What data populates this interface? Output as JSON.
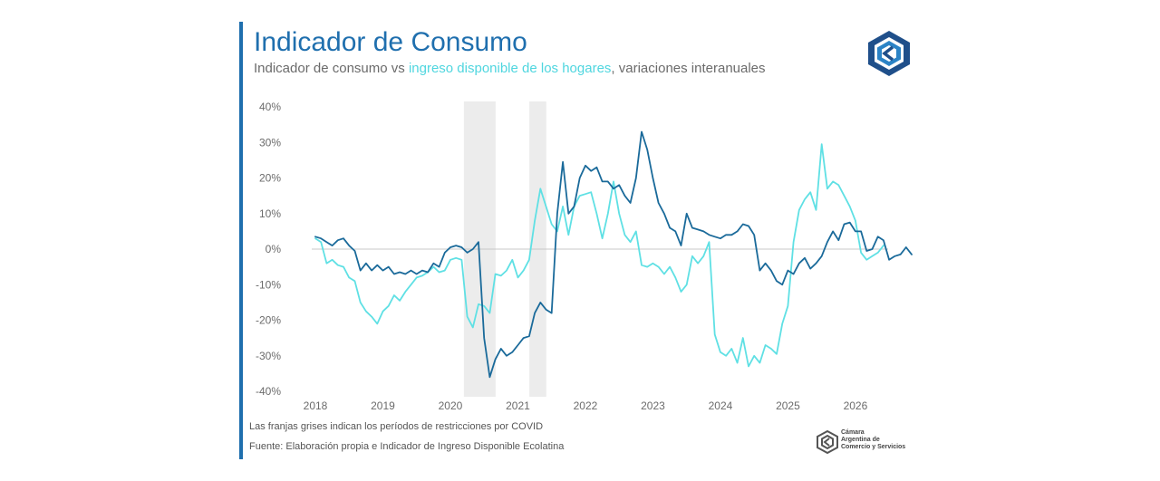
{
  "header": {
    "title": "Indicador de Consumo",
    "subtitle_prefix": "Indicador de consumo vs ",
    "subtitle_highlight": "ingreso disponible de los hogares",
    "subtitle_suffix": ", variaciones interanuales"
  },
  "footer": {
    "note": "Las franjas grises indican los períodos de restricciones por COVID",
    "source": "Fuente: Elaboración propia e Indicador de Ingreso Disponible Ecolatina"
  },
  "logo": {
    "org_line1": "Cámara",
    "org_line2": "Argentina de",
    "org_line3": "Comercio y Servicios",
    "icon": "cac-logo-icon"
  },
  "colors": {
    "accent": "#1f6fae",
    "consumo": "#1a6a9a",
    "ingreso": "#5fe0e4",
    "band": "#ececec"
  },
  "chart_data": {
    "type": "line",
    "title": "Indicador de Consumo",
    "xlabel": "",
    "ylabel": "",
    "ylim": [
      -40,
      40
    ],
    "xlim": [
      2018.0,
      2026.35
    ],
    "yticks": [
      -40,
      -30,
      -20,
      -10,
      0,
      10,
      20,
      30,
      40
    ],
    "ytick_labels": [
      "-40%",
      "-30%",
      "-20%",
      "-10%",
      "0%",
      "10%",
      "20%",
      "30%",
      "40%"
    ],
    "xticks": [
      2018,
      2019,
      2020,
      2021,
      2022,
      2023,
      2024,
      2025,
      2026
    ],
    "xtick_labels": [
      "2018",
      "2019",
      "2020",
      "2021",
      "2022",
      "2023",
      "2024",
      "2025",
      "2026"
    ],
    "shaded_periods": [
      [
        2020.2,
        2020.67
      ],
      [
        2021.17,
        2021.42
      ]
    ],
    "x_start": 2018.0,
    "x_step": 0.08333,
    "series": [
      {
        "name": "Indicador de consumo",
        "color": "#1a6a9a",
        "values": [
          3.5,
          3,
          2,
          1,
          2.5,
          3,
          1,
          -0.5,
          -6,
          -4,
          -6,
          -4.5,
          -6,
          -5,
          -7,
          -6.5,
          -7,
          -6,
          -7,
          -6,
          -6.5,
          -4,
          -5,
          -1,
          0.5,
          1,
          0.5,
          -1,
          0,
          2,
          -25,
          -36,
          -31,
          -28,
          -30,
          -29,
          -27,
          -25,
          -24.5,
          -18,
          -15,
          -17,
          -18,
          10,
          24.5,
          10,
          12,
          20,
          23.5,
          22,
          23,
          19,
          19,
          17,
          18,
          15,
          13,
          20,
          33,
          28,
          20,
          13,
          10,
          6,
          5,
          1,
          10,
          6,
          5.5,
          5,
          4,
          3.5,
          3,
          4,
          4,
          5,
          7,
          6.5,
          4,
          -6,
          -4,
          -6,
          -9,
          -10,
          -6,
          -7,
          -4,
          -2.5,
          -5.5,
          -4,
          -2,
          2,
          5,
          2.5,
          7,
          7.5,
          5,
          5,
          -0.5,
          0,
          3.5,
          2.5,
          -3,
          -2,
          -1.5,
          0.5,
          -1.5
        ]
      },
      {
        "name": "Ingreso disponible de los hogares",
        "color": "#5fe0e4",
        "values": [
          3,
          2,
          -4,
          -3,
          -4.5,
          -5,
          -8,
          -9,
          -15,
          -17.5,
          -19,
          -21,
          -17.5,
          -16,
          -13,
          -14.5,
          -12,
          -10,
          -8,
          -7.5,
          -6.5,
          -5,
          -6.5,
          -6,
          -3,
          -2.5,
          -3,
          -19,
          -22,
          -15.5,
          -16,
          -18,
          -7,
          -7.5,
          -6,
          -3,
          -8,
          -6,
          -3,
          8,
          17,
          12,
          7,
          5,
          12,
          4,
          12,
          15,
          15.5,
          16,
          10,
          3,
          10,
          19,
          10,
          4,
          2,
          5,
          -4.5,
          -5,
          -4,
          -5,
          -7,
          -5,
          -8,
          -12,
          -10,
          -2,
          -4,
          -2,
          2,
          -24,
          -29,
          -30,
          -28,
          -32,
          -25,
          -33,
          -30,
          -32,
          -27,
          -28,
          -29.5,
          -21,
          -16,
          2,
          11,
          14,
          16,
          11,
          29.5,
          17,
          19,
          18,
          15,
          12,
          8,
          -1,
          -3,
          -2,
          -1,
          1
        ]
      }
    ]
  }
}
